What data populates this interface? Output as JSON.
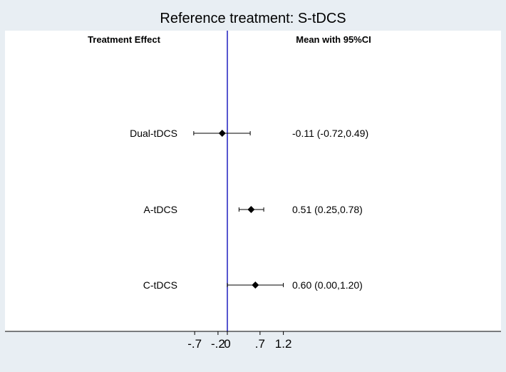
{
  "chart_data": {
    "type": "forest",
    "title": "Reference treatment: S-tDCS",
    "column_headers": {
      "label": "Treatment Effect",
      "estimate": "Mean with 95%CI"
    },
    "reference_line": 0,
    "xlim": [
      -1.0,
      1.4
    ],
    "x_ticks": [
      {
        "value": -0.7,
        "label": "-.7"
      },
      {
        "value": -0.2,
        "label": "-.2"
      },
      {
        "value": 0,
        "label": "0"
      },
      {
        "value": 0.7,
        "label": ".7"
      },
      {
        "value": 1.2,
        "label": "1.2"
      }
    ],
    "rows": [
      {
        "label": "Dual-tDCS",
        "mean": -0.11,
        "lower": -0.72,
        "upper": 0.49,
        "text": "-0.11 (-0.72,0.49)"
      },
      {
        "label": "A-tDCS",
        "mean": 0.51,
        "lower": 0.25,
        "upper": 0.78,
        "text": "0.51 (0.25,0.78)"
      },
      {
        "label": "C-tDCS",
        "mean": 0.6,
        "lower": 0.0,
        "upper": 1.2,
        "text": "0.60 (0.00,1.20)"
      }
    ],
    "colors": {
      "background": "#e8eef3",
      "plot_area": "#ffffff",
      "reference_line": "#1f1fbf",
      "marks": "#000000"
    }
  }
}
